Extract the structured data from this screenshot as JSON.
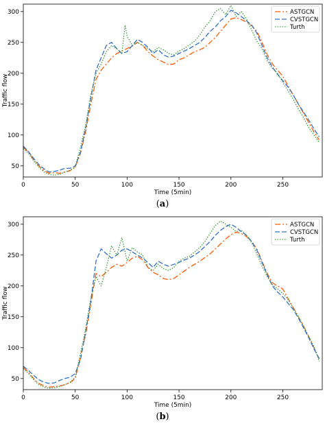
{
  "colors": {
    "ASTGCN": "#ff5a00",
    "CVSTGCN": "#2f6fc8",
    "Turth": "#3c9a3c",
    "axis": "#000000"
  },
  "captions": {
    "a": "a",
    "b": "b"
  },
  "chart_data": [
    {
      "type": "line",
      "xlabel": "Time (5min)",
      "ylabel": "Traffic flow",
      "xlim": [
        0,
        288
      ],
      "ylim": [
        32,
        312
      ],
      "xticks": [
        0,
        50,
        100,
        150,
        200,
        250
      ],
      "yticks": [
        50,
        100,
        150,
        200,
        250,
        300
      ],
      "legend_position": "top-right",
      "series": [
        {
          "name": "ASTGCN",
          "style": "dashdot",
          "x": [
            0,
            5,
            10,
            15,
            20,
            25,
            30,
            35,
            40,
            45,
            50,
            55,
            60,
            65,
            70,
            75,
            80,
            85,
            90,
            95,
            100,
            105,
            110,
            115,
            120,
            125,
            130,
            135,
            140,
            145,
            150,
            155,
            160,
            165,
            170,
            175,
            180,
            185,
            190,
            195,
            200,
            205,
            210,
            215,
            220,
            225,
            230,
            235,
            240,
            245,
            250,
            255,
            260,
            265,
            270,
            275,
            280,
            285
          ],
          "y": [
            80,
            72,
            60,
            50,
            42,
            38,
            39,
            38,
            40,
            42,
            48,
            70,
            105,
            150,
            190,
            205,
            215,
            225,
            232,
            236,
            240,
            244,
            250,
            245,
            235,
            228,
            222,
            218,
            214,
            215,
            222,
            225,
            230,
            235,
            238,
            242,
            250,
            258,
            268,
            278,
            288,
            290,
            287,
            283,
            277,
            268,
            250,
            230,
            215,
            205,
            195,
            180,
            165,
            150,
            135,
            120,
            105,
            92
          ]
        },
        {
          "name": "CVSTGCN",
          "style": "dashed",
          "x": [
            0,
            5,
            10,
            15,
            20,
            25,
            30,
            35,
            40,
            45,
            50,
            55,
            60,
            65,
            70,
            75,
            80,
            85,
            90,
            95,
            100,
            105,
            110,
            115,
            120,
            125,
            130,
            135,
            140,
            145,
            150,
            155,
            160,
            165,
            170,
            175,
            180,
            185,
            190,
            195,
            200,
            205,
            210,
            215,
            220,
            225,
            230,
            235,
            240,
            245,
            250,
            255,
            260,
            265,
            270,
            275,
            280,
            285
          ],
          "y": [
            82,
            73,
            62,
            52,
            45,
            40,
            41,
            43,
            46,
            46,
            50,
            72,
            110,
            160,
            205,
            225,
            245,
            250,
            240,
            232,
            235,
            245,
            255,
            250,
            242,
            232,
            238,
            230,
            226,
            228,
            232,
            236,
            240,
            245,
            250,
            258,
            268,
            275,
            285,
            292,
            302,
            298,
            292,
            285,
            278,
            265,
            245,
            225,
            210,
            198,
            188,
            178,
            165,
            150,
            137,
            124,
            110,
            97
          ]
        },
        {
          "name": "Turth",
          "style": "dotted",
          "x": [
            0,
            5,
            10,
            15,
            20,
            25,
            30,
            35,
            40,
            45,
            50,
            55,
            60,
            65,
            70,
            75,
            80,
            85,
            90,
            95,
            98,
            100,
            105,
            110,
            115,
            120,
            125,
            130,
            135,
            140,
            145,
            150,
            155,
            160,
            165,
            170,
            175,
            180,
            185,
            190,
            195,
            200,
            205,
            210,
            215,
            220,
            225,
            230,
            235,
            240,
            245,
            250,
            255,
            260,
            265,
            270,
            275,
            280,
            285
          ],
          "y": [
            78,
            70,
            58,
            48,
            40,
            36,
            35,
            36,
            40,
            43,
            48,
            80,
            115,
            165,
            200,
            215,
            235,
            245,
            240,
            232,
            278,
            260,
            245,
            250,
            245,
            240,
            235,
            242,
            238,
            232,
            230,
            236,
            240,
            246,
            252,
            262,
            275,
            285,
            300,
            305,
            295,
            310,
            292,
            300,
            288,
            270,
            252,
            240,
            220,
            208,
            200,
            185,
            172,
            158,
            142,
            128,
            112,
            100,
            88
          ]
        }
      ]
    },
    {
      "type": "line",
      "xlabel": "Time (5min)",
      "ylabel": "Traffic flow",
      "xlim": [
        0,
        288
      ],
      "ylim": [
        32,
        312
      ],
      "xticks": [
        0,
        50,
        100,
        150,
        200,
        250
      ],
      "yticks": [
        50,
        100,
        150,
        200,
        250,
        300
      ],
      "legend_position": "top-right",
      "series": [
        {
          "name": "ASTGCN",
          "style": "dashdot",
          "x": [
            0,
            5,
            10,
            15,
            20,
            25,
            30,
            35,
            40,
            45,
            50,
            55,
            60,
            65,
            70,
            75,
            80,
            85,
            90,
            95,
            100,
            105,
            110,
            115,
            120,
            125,
            130,
            135,
            140,
            145,
            150,
            155,
            160,
            165,
            170,
            175,
            180,
            185,
            190,
            195,
            200,
            205,
            210,
            215,
            220,
            225,
            230,
            235,
            240,
            245,
            250,
            255,
            260,
            265,
            270,
            275,
            280,
            285
          ],
          "y": [
            68,
            60,
            50,
            42,
            38,
            36,
            37,
            38,
            40,
            43,
            50,
            85,
            120,
            170,
            220,
            215,
            222,
            230,
            235,
            232,
            238,
            245,
            248,
            242,
            230,
            222,
            218,
            212,
            210,
            212,
            218,
            224,
            230,
            235,
            240,
            246,
            252,
            260,
            268,
            276,
            283,
            287,
            285,
            280,
            272,
            260,
            240,
            220,
            205,
            200,
            195,
            180,
            165,
            150,
            135,
            118,
            100,
            82
          ]
        },
        {
          "name": "CVSTGCN",
          "style": "dashed",
          "x": [
            0,
            5,
            10,
            15,
            20,
            25,
            30,
            35,
            40,
            45,
            50,
            55,
            60,
            65,
            70,
            75,
            80,
            85,
            90,
            95,
            100,
            105,
            110,
            115,
            120,
            125,
            130,
            135,
            140,
            145,
            150,
            155,
            160,
            165,
            170,
            175,
            180,
            185,
            190,
            195,
            200,
            205,
            210,
            215,
            220,
            225,
            230,
            235,
            240,
            245,
            250,
            255,
            260,
            265,
            270,
            275,
            280,
            285
          ],
          "y": [
            70,
            63,
            55,
            48,
            44,
            42,
            43,
            47,
            50,
            52,
            58,
            80,
            125,
            175,
            240,
            260,
            252,
            245,
            250,
            258,
            260,
            255,
            250,
            245,
            238,
            230,
            240,
            235,
            232,
            235,
            238,
            242,
            245,
            250,
            256,
            264,
            272,
            282,
            290,
            296,
            300,
            295,
            288,
            282,
            272,
            258,
            238,
            218,
            200,
            190,
            182,
            172,
            162,
            148,
            132,
            116,
            98,
            82
          ]
        },
        {
          "name": "Turth",
          "style": "dotted",
          "x": [
            0,
            5,
            10,
            15,
            20,
            25,
            30,
            35,
            40,
            45,
            50,
            55,
            60,
            65,
            70,
            75,
            80,
            85,
            90,
            95,
            100,
            105,
            110,
            115,
            120,
            125,
            130,
            135,
            140,
            145,
            150,
            155,
            160,
            165,
            170,
            175,
            180,
            185,
            190,
            195,
            200,
            205,
            210,
            215,
            220,
            225,
            230,
            235,
            240,
            245,
            250,
            255,
            260,
            265,
            270,
            275,
            280,
            285
          ],
          "y": [
            66,
            58,
            48,
            40,
            36,
            34,
            35,
            37,
            40,
            44,
            52,
            90,
            130,
            180,
            215,
            200,
            230,
            265,
            250,
            278,
            240,
            262,
            255,
            250,
            230,
            225,
            235,
            228,
            225,
            230,
            240,
            245,
            248,
            255,
            262,
            272,
            285,
            298,
            305,
            300,
            295,
            288,
            290,
            282,
            270,
            252,
            232,
            215,
            202,
            195,
            188,
            178,
            165,
            150,
            135,
            118,
            102,
            78
          ]
        }
      ]
    }
  ]
}
